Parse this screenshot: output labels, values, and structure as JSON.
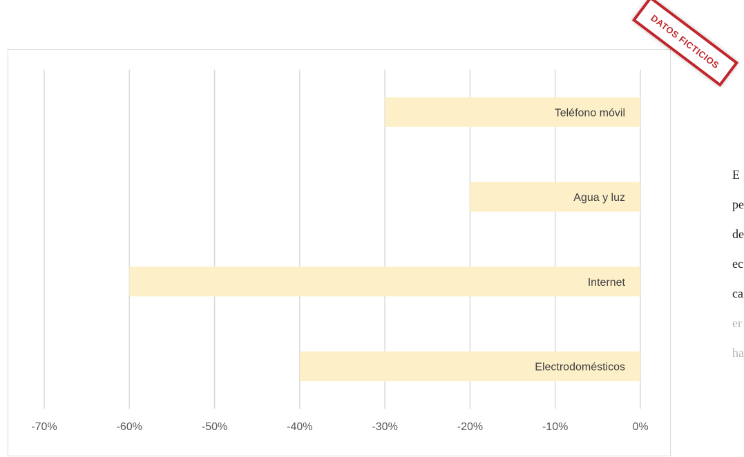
{
  "chart_data": {
    "type": "bar",
    "orientation": "horizontal",
    "categories": [
      "Teléfono móvil",
      "Agua y luz",
      "Internet",
      "Electrodomésticos"
    ],
    "values": [
      -30,
      -20,
      -60,
      -40
    ],
    "xlim": [
      -70,
      0
    ],
    "xticks": [
      -70,
      -60,
      -50,
      -40,
      -30,
      -20,
      -10,
      0
    ],
    "xtick_labels": [
      "-70%",
      "-60%",
      "-50%",
      "-40%",
      "-30%",
      "-20%",
      "-10%",
      "0%"
    ],
    "title": "",
    "xlabel": "",
    "ylabel": "",
    "grid": true,
    "bar_color": "#fdf0c9",
    "grid_color": "#d9d9d9"
  },
  "stamp": {
    "text": "DATOS FICTICIOS",
    "color": "#c0262c"
  },
  "side_text": {
    "lines": [
      "E",
      "pe",
      "de",
      "ec",
      "ca",
      "er",
      "ha"
    ]
  }
}
